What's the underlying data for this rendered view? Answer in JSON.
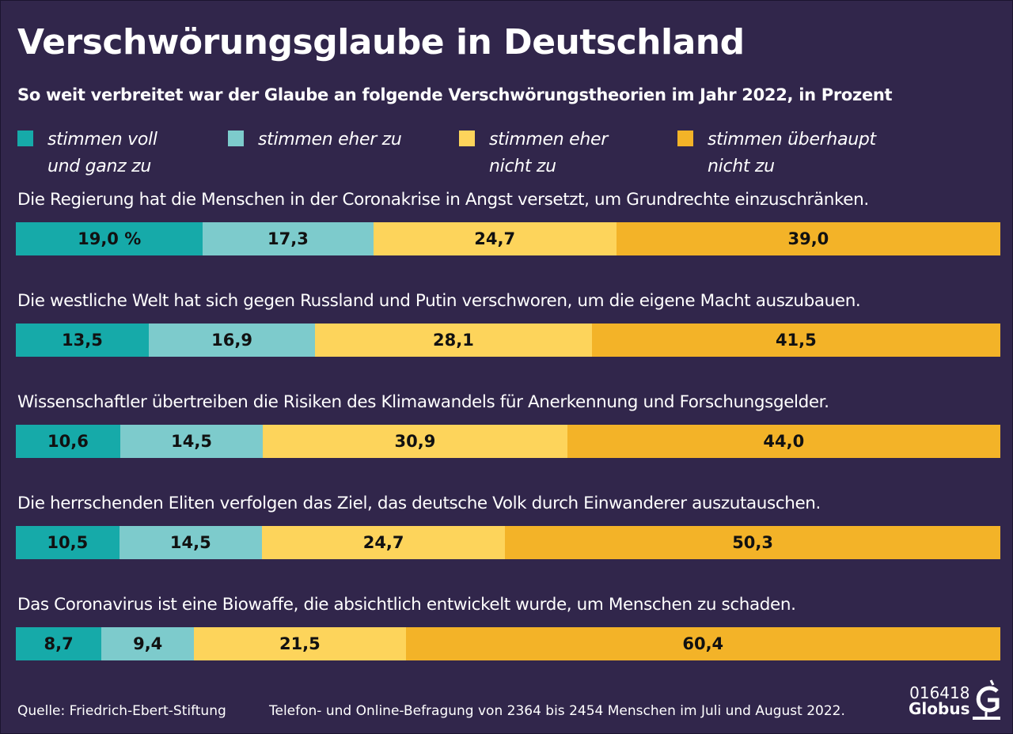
{
  "chart_data": {
    "type": "bar",
    "orientation": "horizontal-stacked-100",
    "title": "Verschwörungsglaube in Deutschland",
    "subtitle": "So weit verbreitet war der Glaube an folgende Verschwörungstheorien im Jahr 2022, in Prozent",
    "legend_position": "top",
    "categories": [
      "Die Regierung hat die Menschen in der Coronakrise in Angst versetzt, um Grundrechte einzuschränken.",
      "Die westliche Welt hat sich gegen Russland und Putin verschworen, um die eigene Macht auszubauen.",
      "Wissenschaftler übertreiben die Risiken des Klimawandels für Anerkennung und Forschungsgelder.",
      "Die herrschenden Eliten verfolgen das Ziel, das deutsche Volk durch Einwanderer auszutauschen.",
      "Das Coronavirus ist eine Biowaffe, die absichtlich entwickelt wurde, um Menschen zu schaden."
    ],
    "series": [
      {
        "name": "stimmen voll\nund ganz zu",
        "color": "#16aaa9",
        "values": [
          19.0,
          13.5,
          10.6,
          10.5,
          8.7
        ],
        "labels": [
          "19,0 %",
          "13,5",
          "10,6",
          "10,5",
          "8,7"
        ]
      },
      {
        "name": "stimmen eher zu",
        "color": "#7dcbcc",
        "values": [
          17.3,
          16.9,
          14.5,
          14.5,
          9.4
        ],
        "labels": [
          "17,3",
          "16,9",
          "14,5",
          "14,5",
          "9,4"
        ]
      },
      {
        "name": "stimmen eher\nnicht zu",
        "color": "#fdd45b",
        "values": [
          24.7,
          28.1,
          30.9,
          24.7,
          21.5
        ],
        "labels": [
          "24,7",
          "28,1",
          "30,9",
          "24,7",
          "21,5"
        ]
      },
      {
        "name": "stimmen überhaupt\nnicht zu",
        "color": "#f3b328",
        "values": [
          39.0,
          41.5,
          44.0,
          50.3,
          60.4
        ],
        "labels": [
          "39,0",
          "41,5",
          "44,0",
          "50,3",
          "60,4"
        ]
      }
    ]
  },
  "footer": {
    "source": "Quelle: Friedrich-Ebert-Stiftung",
    "note": "Telefon- und Online-Befragung von 2364 bis 2454 Menschen im Juli und August 2022.",
    "logo_number": "016418",
    "logo_name": "Globus"
  }
}
